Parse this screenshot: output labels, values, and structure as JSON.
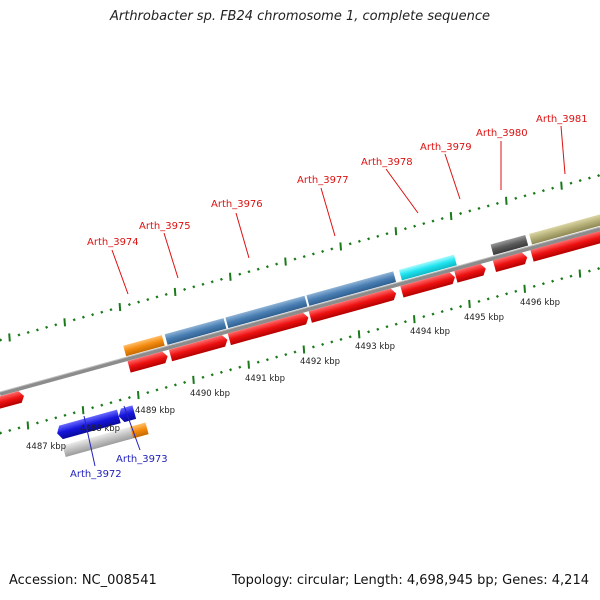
{
  "title": "Arthrobacter sp. FB24 chromosome 1, complete sequence",
  "footer": {
    "accession": "Accession: NC_008541",
    "info": "Topology: circular; Length: 4,698,945 bp; Genes: 4,214"
  },
  "colors": {
    "red": "#ee1111",
    "steelblue": "#4a7fb4",
    "orange": "#f4890d",
    "cyan": "#1ee4f0",
    "darkgray": "#5a5a5a",
    "khaki": "#b4ae76",
    "blue": "#1515dd",
    "lightgray": "#c2c2c2",
    "tick_green": "#1a7a1a",
    "label_red": "#dd1111",
    "label_blue": "#2222bb",
    "backbone": "#8c8c8c"
  },
  "kbp_labels": [
    "4487 kbp",
    "4488 kbp",
    "4489 kbp",
    "4490 kbp",
    "4491 kbp",
    "4492 kbp",
    "4493 kbp",
    "4494 kbp",
    "4495 kbp",
    "4496 kbp"
  ],
  "gene_labels_top": [
    "Arth_3974",
    "Arth_3975",
    "Arth_3976",
    "Arth_3977",
    "Arth_3978",
    "Arth_3979",
    "Arth_3980",
    "Arth_3981"
  ],
  "gene_labels_bottom": [
    "Arth_3972",
    "Arth_3973"
  ]
}
